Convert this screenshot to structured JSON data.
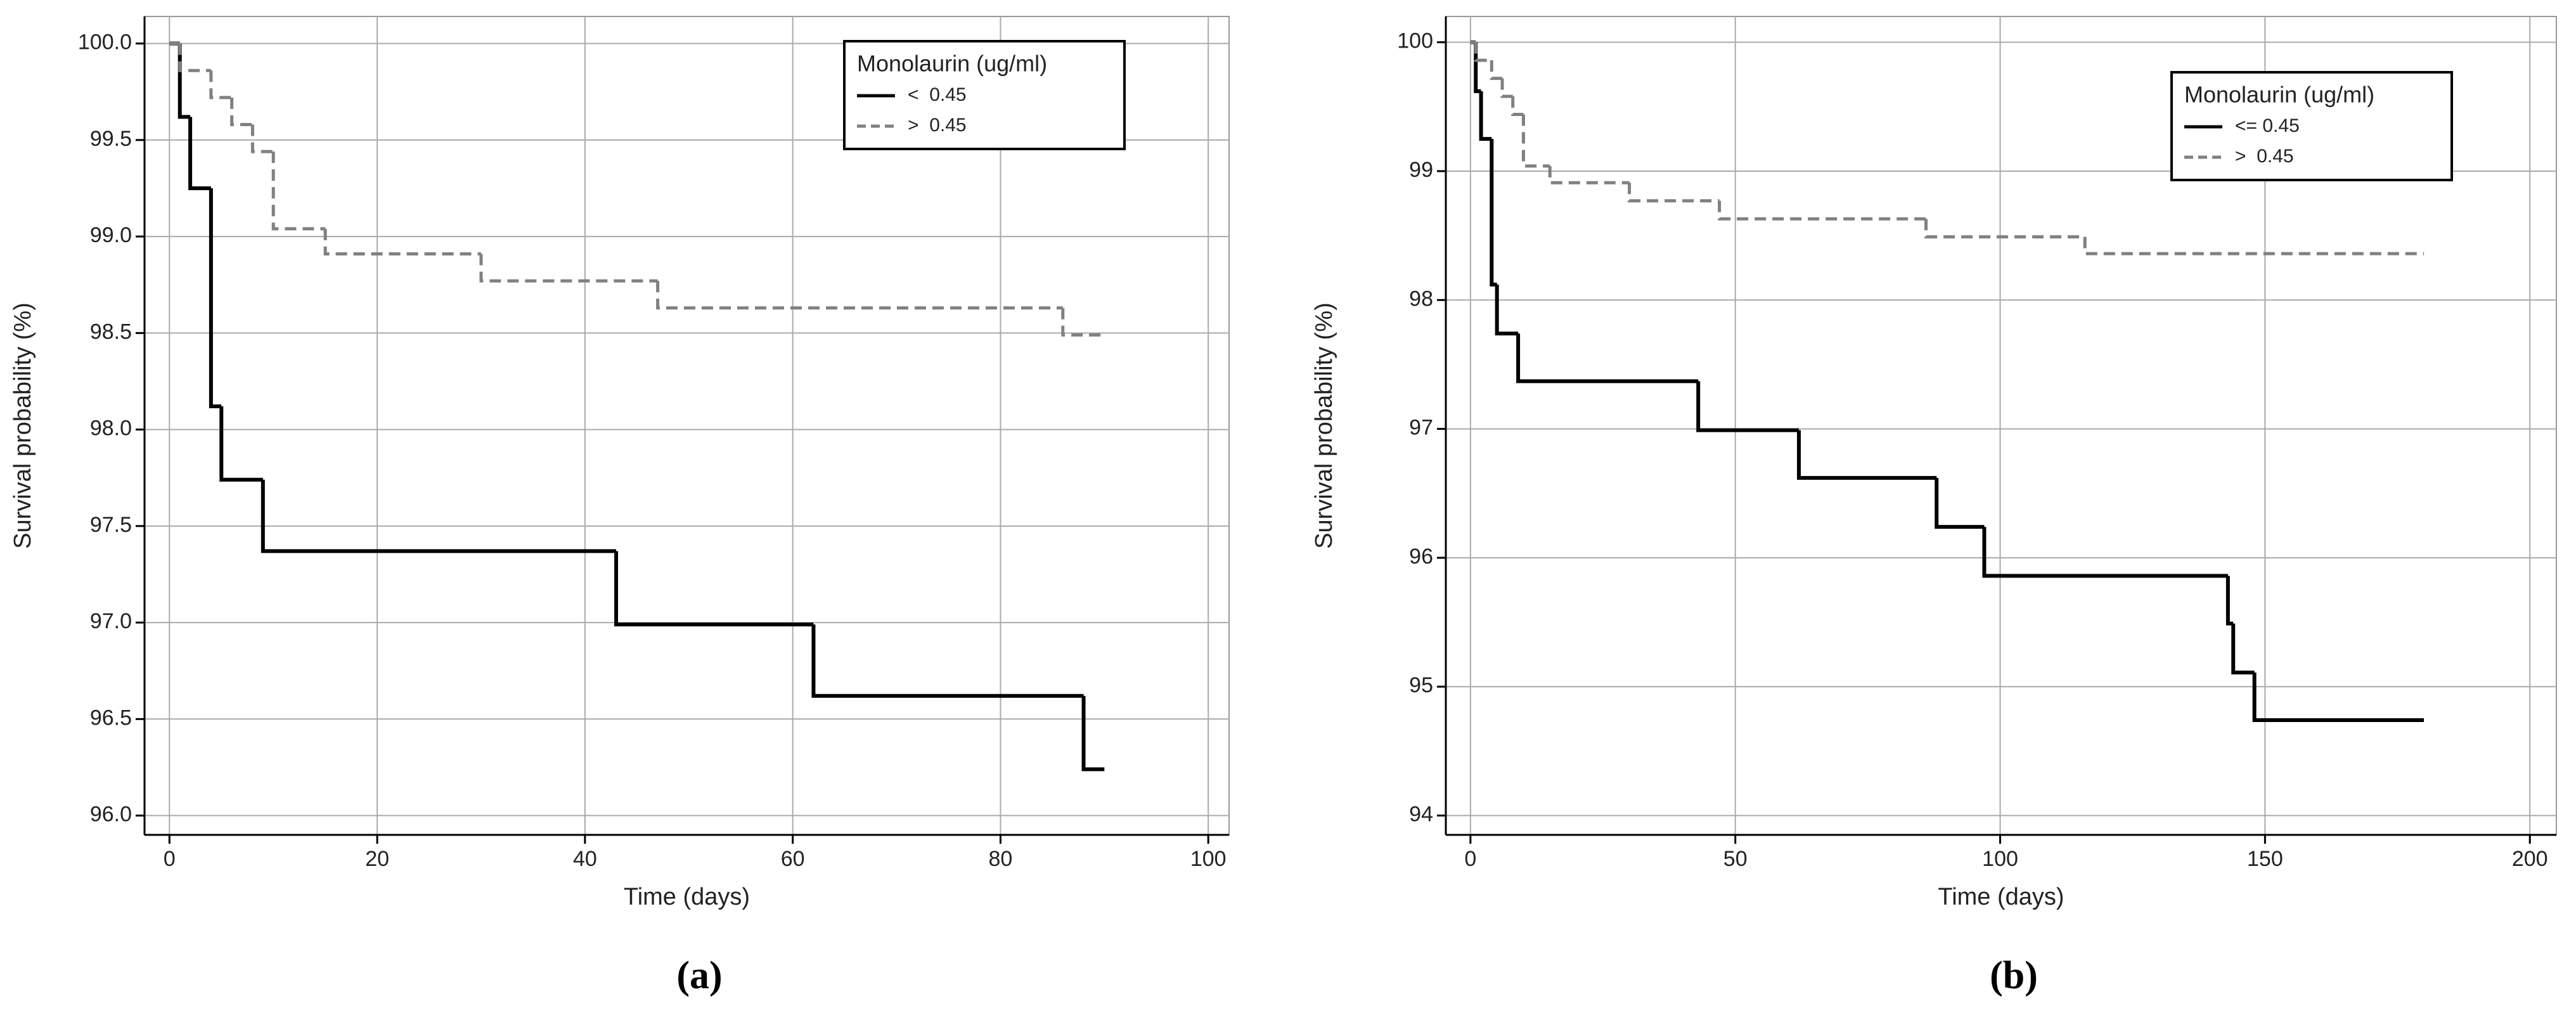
{
  "chart_data": [
    {
      "type": "step",
      "caption": "(a)",
      "x_label": "Time (days)",
      "y_label": "Survival probability (%)",
      "xlim": [
        -2.4,
        102
      ],
      "xticks": [
        0,
        20,
        40,
        60,
        80,
        100
      ],
      "ylim": [
        95.9,
        100.14
      ],
      "yticks": [
        {
          "value": 96,
          "label": "96.0"
        },
        96.5,
        {
          "value": 97,
          "label": "97.0"
        },
        97.5,
        {
          "value": 98,
          "label": "98.0"
        },
        98.5,
        {
          "value": 99,
          "label": "99.0"
        },
        99.5,
        {
          "value": 100,
          "label": "100.0"
        }
      ],
      "grid": true,
      "legend": "upper right",
      "legend_title": "Monolaurin (ug/ml)",
      "series": [
        {
          "name": "<  0.45",
          "color": "#000000",
          "line_style": "solid",
          "x": [
            0,
            1,
            2,
            4,
            5,
            9,
            43,
            62,
            88,
            90
          ],
          "values": [
            100,
            99.62,
            99.25,
            98.12,
            97.74,
            97.37,
            96.99,
            96.62,
            96.24,
            96.24
          ]
        },
        {
          "name": ">  0.45",
          "color": "#808080",
          "line_style": "dashed",
          "x": [
            0,
            1,
            4,
            6,
            8,
            10,
            15,
            30,
            47,
            86,
            90
          ],
          "values": [
            100,
            99.86,
            99.72,
            99.58,
            99.44,
            99.04,
            98.91,
            98.77,
            98.63,
            98.49,
            98.49
          ]
        }
      ]
    },
    {
      "type": "step",
      "caption": "(b)",
      "x_label": "Time (days)",
      "y_label": "Survival probability (%)",
      "xlim": [
        -4.65,
        205
      ],
      "xticks": [
        0,
        50,
        100,
        150,
        200
      ],
      "ylim": [
        93.85,
        100.2
      ],
      "yticks": [
        94,
        95,
        96,
        97,
        98,
        99,
        100
      ],
      "grid": true,
      "legend": "upper right",
      "legend_title": "Monolaurin (ug/ml)",
      "series": [
        {
          "name": "<= 0.45",
          "color": "#000000",
          "line_style": "solid",
          "x": [
            0,
            1,
            2,
            4,
            5,
            9,
            43,
            62,
            88,
            97,
            143,
            144,
            148,
            180
          ],
          "values": [
            100,
            99.62,
            99.25,
            98.12,
            97.74,
            97.37,
            96.99,
            96.62,
            96.24,
            95.86,
            95.49,
            95.11,
            94.74,
            94.74
          ]
        },
        {
          "name": ">  0.45",
          "color": "#808080",
          "line_style": "dashed",
          "x": [
            0,
            1,
            4,
            6,
            8,
            10,
            15,
            30,
            47,
            86,
            116,
            180
          ],
          "values": [
            100,
            99.86,
            99.72,
            99.58,
            99.44,
            99.04,
            98.91,
            98.77,
            98.63,
            98.49,
            98.36,
            98.36
          ]
        }
      ]
    }
  ]
}
